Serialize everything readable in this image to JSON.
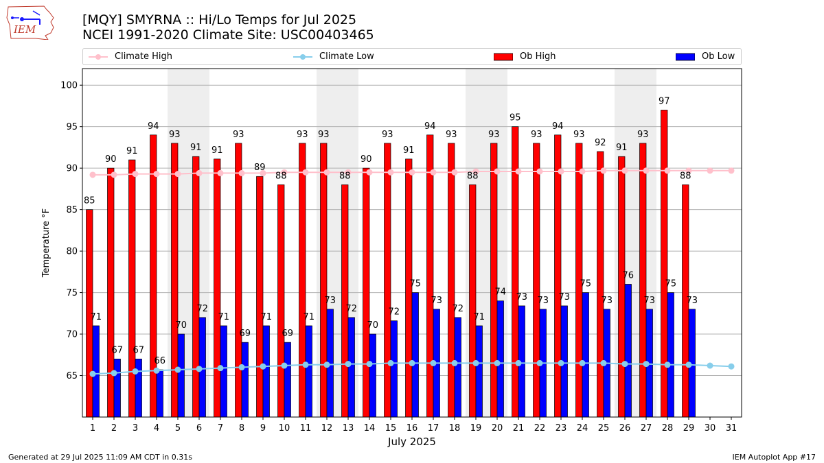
{
  "header": {
    "title_line1": "[MQY] SMYRNA :: Hi/Lo Temps for Jul 2025",
    "title_line2": "NCEI 1991-2020 Climate Site: USC00403465",
    "logo_text": "IEM"
  },
  "footer": {
    "generated": "Generated at 29 Jul 2025 11:09 AM CDT in 0.31s",
    "app": "IEM Autoplot App #17"
  },
  "colors": {
    "ob_high": "#ff0000",
    "ob_low": "#0000ff",
    "climate_high": "#ffc0cb",
    "climate_low": "#87ceeb",
    "weekend_shade": "#eeeeee",
    "grid": "#b0b0b0"
  },
  "legend": [
    {
      "label": "Climate High",
      "kind": "line",
      "color": "#ffc0cb"
    },
    {
      "label": "Climate Low",
      "kind": "line",
      "color": "#87ceeb"
    },
    {
      "label": "Ob High",
      "kind": "bar",
      "color": "#ff0000"
    },
    {
      "label": "Ob Low",
      "kind": "bar",
      "color": "#0000ff"
    }
  ],
  "chart_data": {
    "type": "bar",
    "xlabel": "July 2025",
    "ylabel": "Temperature °F",
    "ylim": [
      60,
      102
    ],
    "yticks": [
      65,
      70,
      75,
      80,
      85,
      90,
      95,
      100
    ],
    "grid": "horizontal",
    "legend_position": "top",
    "categories": [
      "1",
      "2",
      "3",
      "4",
      "5",
      "6",
      "7",
      "8",
      "9",
      "10",
      "11",
      "12",
      "13",
      "14",
      "15",
      "16",
      "17",
      "18",
      "19",
      "20",
      "21",
      "22",
      "23",
      "24",
      "25",
      "26",
      "27",
      "28",
      "29",
      "30",
      "31"
    ],
    "shaded_weekends": [
      [
        5,
        6
      ],
      [
        12,
        13
      ],
      [
        19,
        20
      ],
      [
        26,
        27
      ]
    ],
    "series": [
      {
        "name": "Ob High",
        "type": "bar",
        "values": [
          85,
          90,
          91,
          94,
          93,
          91.4,
          91.1,
          93,
          89,
          88,
          93,
          93,
          88,
          90,
          93,
          91.1,
          94,
          93,
          88,
          93,
          95,
          93,
          94,
          93,
          92,
          91.4,
          93,
          97,
          88,
          null,
          null
        ],
        "labels": [
          "85",
          "90",
          "91",
          "94",
          "93",
          "91",
          "91",
          "93",
          "89",
          "88",
          "93",
          "93",
          "88",
          "90",
          "93",
          "91",
          "94",
          "93",
          "88",
          "93",
          "95",
          "93",
          "94",
          "93",
          "92",
          "91",
          "93",
          "97",
          "88",
          "",
          ""
        ]
      },
      {
        "name": "Ob Low",
        "type": "bar",
        "values": [
          71,
          67,
          67,
          65.7,
          70,
          72,
          71,
          69,
          71,
          69,
          71,
          73,
          72,
          70,
          71.6,
          75,
          73,
          72,
          71,
          74,
          73.4,
          73,
          73.4,
          75,
          73,
          76,
          73,
          75,
          73,
          null,
          null
        ],
        "labels": [
          "71",
          "67",
          "67",
          "66",
          "70",
          "72",
          "71",
          "69",
          "71",
          "69",
          "71",
          "73",
          "72",
          "70",
          "72",
          "75",
          "73",
          "72",
          "71",
          "74",
          "73",
          "73",
          "73",
          "75",
          "73",
          "76",
          "73",
          "75",
          "73",
          "",
          ""
        ]
      },
      {
        "name": "Climate High",
        "type": "line",
        "values": [
          89.2,
          89.2,
          89.3,
          89.3,
          89.3,
          89.4,
          89.4,
          89.4,
          89.4,
          89.5,
          89.5,
          89.5,
          89.5,
          89.5,
          89.5,
          89.5,
          89.5,
          89.5,
          89.6,
          89.6,
          89.6,
          89.6,
          89.6,
          89.6,
          89.7,
          89.7,
          89.7,
          89.7,
          89.7,
          89.7,
          89.7
        ]
      },
      {
        "name": "Climate Low",
        "type": "line",
        "values": [
          65.2,
          65.3,
          65.5,
          65.6,
          65.7,
          65.8,
          65.9,
          66.0,
          66.1,
          66.2,
          66.3,
          66.3,
          66.4,
          66.4,
          66.5,
          66.5,
          66.5,
          66.5,
          66.5,
          66.5,
          66.5,
          66.5,
          66.5,
          66.5,
          66.5,
          66.4,
          66.4,
          66.3,
          66.3,
          66.2,
          66.1
        ]
      }
    ]
  }
}
